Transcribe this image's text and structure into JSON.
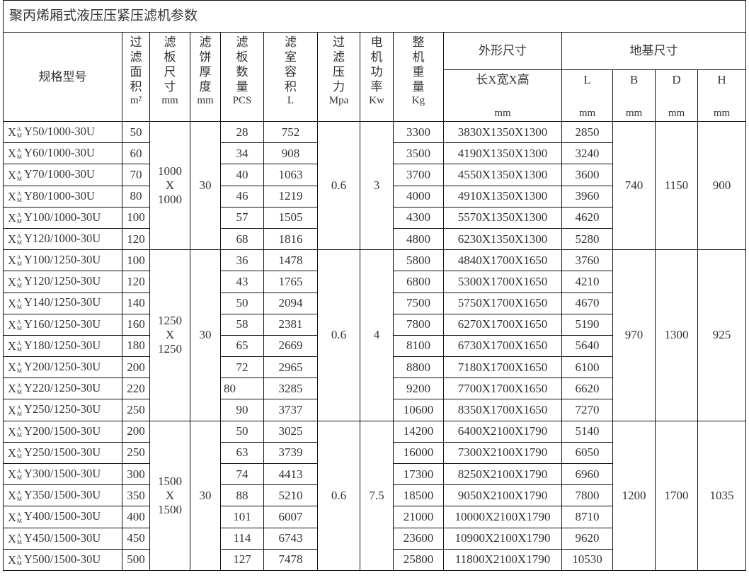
{
  "title": "聚丙烯厢式液压压紧压滤机参数",
  "headers": {
    "model": "规格型号",
    "cols": [
      {
        "label": "过滤面积",
        "unit": "m²"
      },
      {
        "label": "滤板尺寸",
        "unit": "mm"
      },
      {
        "label": "滤饼厚度",
        "unit": "mm"
      },
      {
        "label": "滤板数量",
        "unit": "PCS"
      },
      {
        "label": "滤室容积",
        "unit": "L"
      },
      {
        "label": "过滤压力",
        "unit": "Mpa"
      },
      {
        "label": "电机功率",
        "unit": "Kw"
      },
      {
        "label": "整机重量",
        "unit": "Kg"
      }
    ],
    "outer": {
      "label": "外形尺寸",
      "sub": "长X宽X高",
      "unit": "mm"
    },
    "foundation": {
      "label": "地基尺寸",
      "subs": [
        {
          "label": "L",
          "unit": "mm"
        },
        {
          "label": "B",
          "unit": "mm"
        },
        {
          "label": "D",
          "unit": "mm"
        },
        {
          "label": "H",
          "unit": "mm"
        }
      ]
    }
  },
  "model_prefix": {
    "base": "X",
    "sup": "A",
    "sub": "M"
  },
  "groups": [
    {
      "plate_size": [
        "1000",
        "X",
        "1000"
      ],
      "cake": "30",
      "pressure": "0.6",
      "power": "3",
      "B": "740",
      "D": "1150",
      "H": "900",
      "rows": [
        {
          "model": "Y50/1000-30U",
          "area": "50",
          "plates": "28",
          "volume": "752",
          "weight": "3300",
          "dims": "3830X1350X1300",
          "L": "2850"
        },
        {
          "model": "Y60/1000-30U",
          "area": "60",
          "plates": "34",
          "volume": "908",
          "weight": "3500",
          "dims": "4190X1350X1300",
          "L": "3240"
        },
        {
          "model": "Y70/1000-30U",
          "area": "70",
          "plates": "40",
          "volume": "1063",
          "weight": "3700",
          "dims": "4550X1350X1300",
          "L": "3600"
        },
        {
          "model": "Y80/1000-30U",
          "area": "80",
          "plates": "46",
          "volume": "1219",
          "weight": "4000",
          "dims": "4910X1350X1300",
          "L": "3960"
        },
        {
          "model": "Y100/1000-30U",
          "area": "100",
          "plates": "57",
          "volume": "1505",
          "weight": "4300",
          "dims": "5570X1350X1300",
          "L": "4620"
        },
        {
          "model": "Y120/1000-30U",
          "area": "120",
          "plates": "68",
          "volume": "1816",
          "weight": "4800",
          "dims": "6230X1350X1300",
          "L": "5280"
        }
      ]
    },
    {
      "plate_size": [
        "1250",
        "X",
        "1250"
      ],
      "cake": "30",
      "pressure": "0.6",
      "power": "4",
      "B": "970",
      "D": "1300",
      "H": "925",
      "rows": [
        {
          "model": "Y100/1250-30U",
          "area": "100",
          "plates": "36",
          "volume": "1478",
          "weight": "5800",
          "dims": "4840X1700X1650",
          "L": "3760"
        },
        {
          "model": "Y120/1250-30U",
          "area": "120",
          "plates": "43",
          "volume": "1765",
          "weight": "6800",
          "dims": "5300X1700X1650",
          "L": "4210"
        },
        {
          "model": "Y140/1250-30U",
          "area": "140",
          "plates": "50",
          "volume": "2094",
          "weight": "7500",
          "dims": "5750X1700X1650",
          "L": "4670"
        },
        {
          "model": "Y160/1250-30U",
          "area": "160",
          "plates": "58",
          "volume": "2381",
          "weight": "7800",
          "dims": "6270X1700X1650",
          "L": "5190"
        },
        {
          "model": "Y180/1250-30U",
          "area": "180",
          "plates": "65",
          "volume": "2669",
          "weight": "8100",
          "dims": "6730X1700X1650",
          "L": "5640"
        },
        {
          "model": "Y200/1250-30U",
          "area": "200",
          "plates": "72",
          "volume": "2965",
          "weight": "8800",
          "dims": "7180X1700X1650",
          "L": "6100"
        },
        {
          "model": "Y220/1250-30U",
          "area": "220",
          "plates": "80",
          "volume": "3285",
          "weight": "9200",
          "dims": "7700X1700X1650",
          "L": "6620"
        },
        {
          "model": "Y250/1250-30U",
          "area": "250",
          "plates": "90",
          "volume": "3737",
          "weight": "10600",
          "dims": "8350X1700X1650",
          "L": "7270"
        }
      ]
    },
    {
      "plate_size": [
        "1500",
        "X",
        "1500"
      ],
      "cake": "30",
      "pressure": "0.6",
      "power": "7.5",
      "B": "1200",
      "D": "1700",
      "H": "1035",
      "rows": [
        {
          "model": "Y200/1500-30U",
          "area": "200",
          "plates": "50",
          "volume": "3025",
          "weight": "14200",
          "dims": "6400X2100X1790",
          "L": "5140"
        },
        {
          "model": "Y250/1500-30U",
          "area": "250",
          "plates": "63",
          "volume": "3739",
          "weight": "16000",
          "dims": "7300X2100X1790",
          "L": "6050"
        },
        {
          "model": "Y300/1500-30U",
          "area": "300",
          "plates": "74",
          "volume": "4413",
          "weight": "17300",
          "dims": "8250X2100X1790",
          "L": "6960"
        },
        {
          "model": "Y350/1500-30U",
          "area": "350",
          "plates": "88",
          "volume": "5210",
          "weight": "18500",
          "dims": "9050X2100X1790",
          "L": "7800"
        },
        {
          "model": "Y400/1500-30U",
          "area": "400",
          "plates": "101",
          "volume": "6007",
          "weight": "21000",
          "dims": "10000X2100X1790",
          "L": "8710"
        },
        {
          "model": "Y450/1500-30U",
          "area": "450",
          "plates": "114",
          "volume": "6743",
          "weight": "23600",
          "dims": "10900X2100X1790",
          "L": "9620"
        },
        {
          "model": "Y500/1500-30U",
          "area": "500",
          "plates": "127",
          "volume": "7478",
          "weight": "25800",
          "dims": "11800X2100X1790",
          "L": "10530"
        }
      ]
    }
  ]
}
